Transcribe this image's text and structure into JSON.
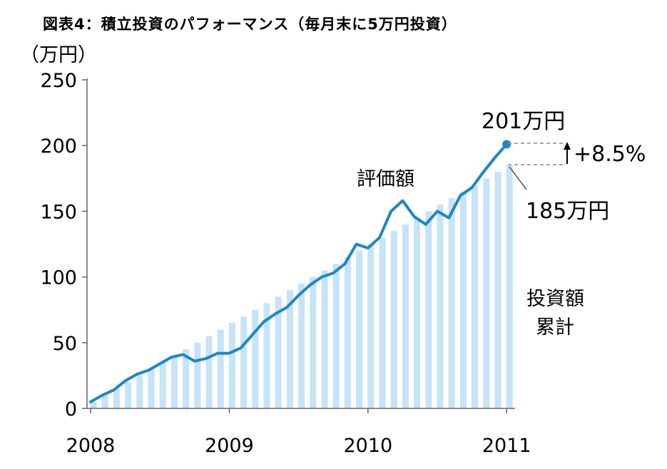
{
  "title": "図表4：積立投資のパフォーマンス（毎月末に5万円投資）",
  "chart_data": {
    "type": "bar",
    "ylabel": "（万円）",
    "ylim": [
      0,
      250
    ],
    "yticks": [
      0,
      50,
      100,
      150,
      200,
      250
    ],
    "xtick_labels": [
      "2008",
      "2009",
      "2010",
      "2011"
    ],
    "grid": false,
    "series": [
      {
        "name": "投資額累計",
        "type": "bar",
        "color": "#c6e3f7",
        "values": [
          5,
          10,
          15,
          20,
          25,
          30,
          35,
          40,
          45,
          50,
          55,
          60,
          65,
          70,
          75,
          80,
          85,
          90,
          95,
          100,
          105,
          110,
          115,
          120,
          125,
          130,
          135,
          140,
          145,
          150,
          155,
          160,
          165,
          170,
          175,
          180,
          185
        ]
      },
      {
        "name": "評価額",
        "type": "line",
        "color": "#1f85c8",
        "values": [
          5,
          10,
          14,
          21,
          26,
          29,
          34,
          39,
          41,
          36,
          38,
          42,
          42,
          46,
          56,
          66,
          72,
          77,
          86,
          94,
          100,
          103,
          110,
          125,
          122,
          130,
          150,
          158,
          146,
          140,
          150,
          145,
          162,
          168,
          180,
          191,
          201
        ]
      }
    ],
    "annotations": {
      "end_value_label": "201万円",
      "end_invested_label": "185万円",
      "gain_label": "+8.5%",
      "line_label": "評価額",
      "bar_label_line1": "投資額",
      "bar_label_line2": "累計"
    }
  }
}
